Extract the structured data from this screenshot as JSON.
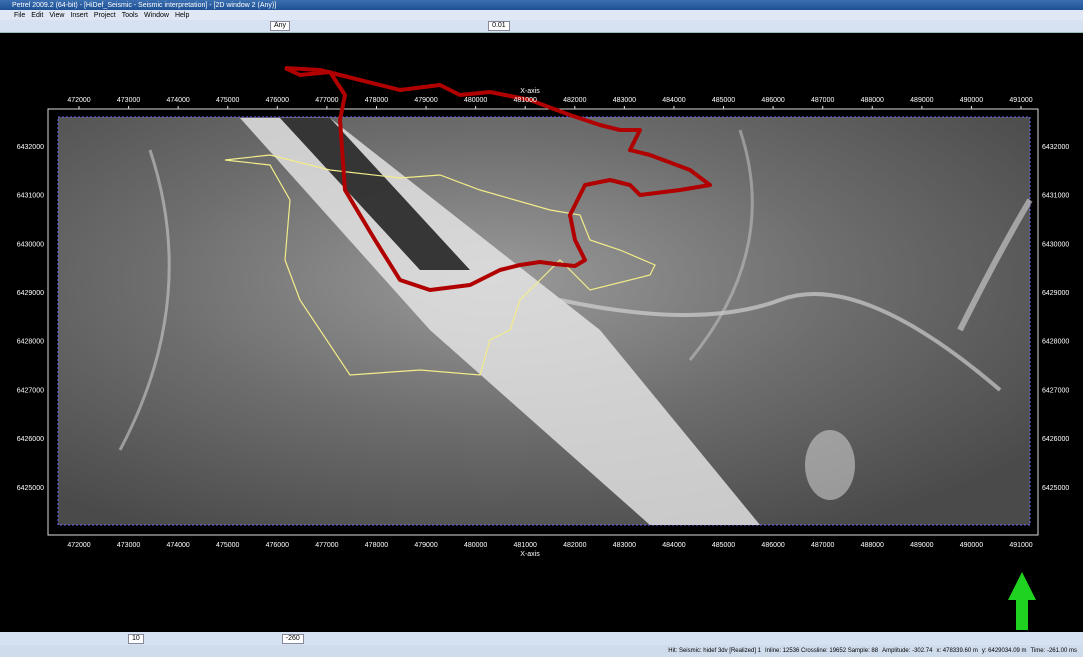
{
  "window": {
    "title": "Petrel 2009.2 (64-bit) - [HiDef_Seismic - Seismic interpretation] - [2D window 2 (Any)]"
  },
  "menu": [
    "File",
    "Edit",
    "View",
    "Insert",
    "Project",
    "Tools",
    "Window",
    "Help"
  ],
  "toolbar": {
    "domain": "Any",
    "step": "0.01"
  },
  "plot": {
    "x_axis_label": "X-axis",
    "x_ticks": [
      472000,
      473000,
      474000,
      475000,
      476000,
      477000,
      478000,
      479000,
      480000,
      481000,
      482000,
      483000,
      484000,
      485000,
      486000,
      487000,
      488000,
      489000,
      490000,
      491000
    ],
    "y_ticks": [
      6432000,
      6431000,
      6430000,
      6429000,
      6428000,
      6427000,
      6426000,
      6425000
    ]
  },
  "bottom_toolbar": {
    "size": "10",
    "level": "-260"
  },
  "status": [
    "Hit: Seismic: hidef 3dv [Realized] 1",
    "Inline: 12536 Crossline: 19652 Sample: 88",
    "Amplitude: -302.74",
    "x: 478339.60 m",
    "y: 6429034.09 m",
    "Time: -261.00 ms"
  ]
}
